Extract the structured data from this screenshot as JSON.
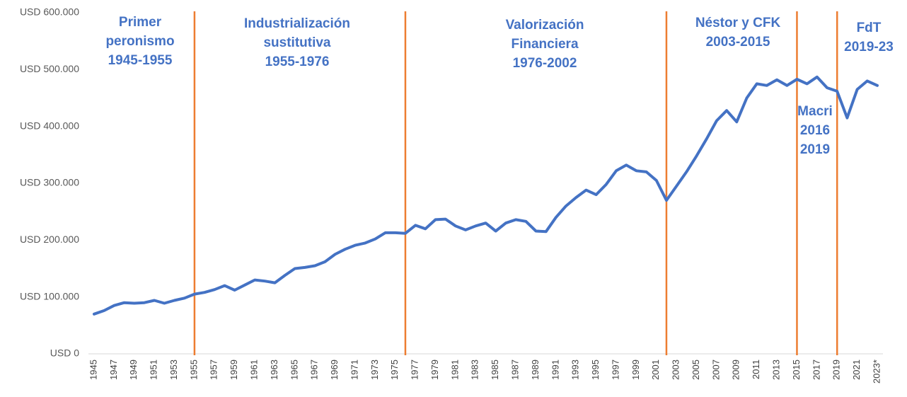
{
  "chart_data": {
    "type": "line",
    "categories": [
      "1945",
      null,
      "1947",
      null,
      "1949",
      null,
      "1951",
      null,
      "1953",
      null,
      "1955",
      null,
      "1957",
      null,
      "1959",
      null,
      "1961",
      null,
      "1963",
      null,
      "1965",
      null,
      "1967",
      null,
      "1969",
      null,
      "1971",
      null,
      "1973",
      null,
      "1975",
      null,
      "1977",
      null,
      "1979",
      null,
      "1981",
      null,
      "1983",
      null,
      "1985",
      null,
      "1987",
      null,
      "1989",
      null,
      "1991",
      null,
      "1993",
      null,
      "1995",
      null,
      "1997",
      null,
      "1999",
      null,
      "2001",
      null,
      "2003",
      null,
      "2005",
      null,
      "2007",
      null,
      "2009",
      null,
      "2011",
      null,
      "2013",
      null,
      "2015",
      null,
      "2017",
      null,
      "2019",
      null,
      "2021",
      null,
      "2023*"
    ],
    "values": [
      70000,
      76000,
      85000,
      90000,
      89000,
      90000,
      94000,
      89000,
      94000,
      98000,
      105000,
      108000,
      113000,
      120000,
      112000,
      121000,
      130000,
      128000,
      125000,
      138000,
      150000,
      152000,
      155000,
      162000,
      175000,
      184000,
      191000,
      195000,
      202000,
      213000,
      213000,
      212000,
      226000,
      220000,
      236000,
      237000,
      225000,
      218000,
      225000,
      230000,
      216000,
      230000,
      236000,
      233000,
      216000,
      215000,
      240000,
      260000,
      275000,
      288000,
      280000,
      298000,
      322000,
      332000,
      322000,
      320000,
      305000,
      270000,
      295000,
      320000,
      348000,
      378000,
      410000,
      428000,
      408000,
      450000,
      475000,
      472000,
      482000,
      472000,
      483000,
      475000,
      487000,
      468000,
      462000,
      415000,
      465000,
      480000,
      472000
    ],
    "color": "#4472c4",
    "ylim": [
      0,
      600000
    ],
    "yticks": [
      {
        "value": 0,
        "label": "USD 0"
      },
      {
        "value": 100000,
        "label": "USD 100.000"
      },
      {
        "value": 200000,
        "label": "USD 200.000"
      },
      {
        "value": 300000,
        "label": "USD 300.000"
      },
      {
        "value": 400000,
        "label": "USD 400.000"
      },
      {
        "value": 500000,
        "label": "USD 500.000"
      },
      {
        "value": 600000,
        "label": "USD 600.000"
      }
    ],
    "grid": false,
    "vlines": [
      1955,
      1976,
      2002,
      2015,
      2019
    ],
    "vline_color": "#ed7d31",
    "annotations": [
      {
        "lines": [
          "Primer",
          "peronismo",
          "1945-1955"
        ]
      },
      {
        "lines": [
          "Industrialización",
          "sustitutiva",
          "1955-1976"
        ]
      },
      {
        "lines": [
          "Valorización",
          "Financiera",
          "1976-2002"
        ]
      },
      {
        "lines": [
          "Néstor y CFK",
          "2003-2015"
        ]
      },
      {
        "lines": [
          "Macri",
          "2016",
          "2019"
        ]
      },
      {
        "lines": [
          "FdT",
          "2019-23"
        ]
      }
    ]
  }
}
